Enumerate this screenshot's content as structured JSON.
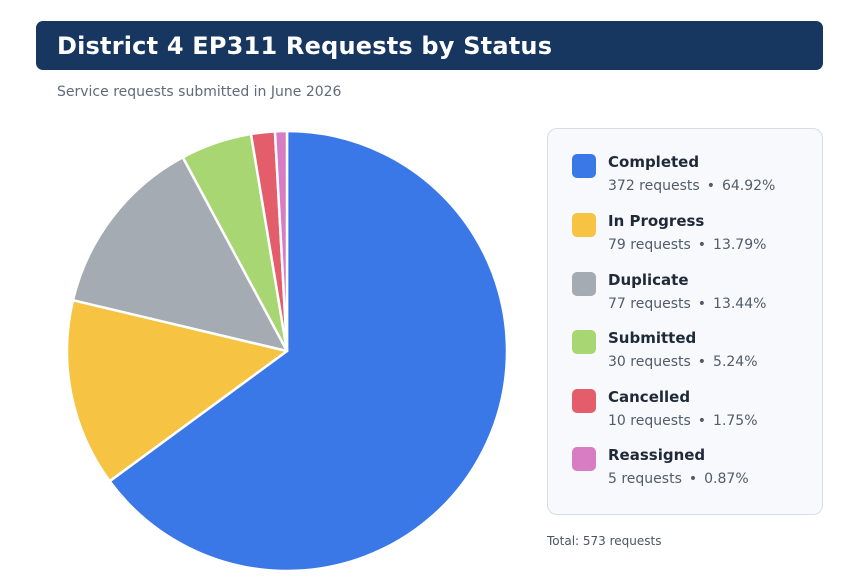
{
  "header": {
    "title": "District 4 EP311 Requests by Status",
    "subtitle": "Service requests submitted in June 2026"
  },
  "chart_data": {
    "type": "pie",
    "title": "District 4 EP311 Requests by Status",
    "subtitle": "Service requests submitted in June 2026",
    "categories": [
      "Completed",
      "In Progress",
      "Duplicate",
      "Submitted",
      "Cancelled",
      "Reassigned"
    ],
    "values": [
      372,
      79,
      77,
      30,
      10,
      5
    ],
    "percents": [
      "64.92%",
      "13.79%",
      "13.44%",
      "5.24%",
      "1.75%",
      "0.87%"
    ],
    "colors": [
      "#3b78e7",
      "#f6c342",
      "#a5abb3",
      "#a8d672",
      "#e35d6a",
      "#d87cc4"
    ],
    "legend": "right"
  },
  "legend": {
    "items": [
      {
        "name": "Completed",
        "count": "372 requests",
        "percent": "64.92%",
        "color": "#3b78e7"
      },
      {
        "name": "In Progress",
        "count": "79 requests",
        "percent": "13.79%",
        "color": "#f6c342"
      },
      {
        "name": "Duplicate",
        "count": "77 requests",
        "percent": "13.44%",
        "color": "#a5abb3"
      },
      {
        "name": "Submitted",
        "count": "30 requests",
        "percent": "5.24%",
        "color": "#a8d672"
      },
      {
        "name": "Cancelled",
        "count": "10 requests",
        "percent": "1.75%",
        "color": "#e35d6a"
      },
      {
        "name": "Reassigned",
        "count": "5 requests",
        "percent": "0.87%",
        "color": "#d87cc4"
      }
    ],
    "separator": "•"
  },
  "footer": {
    "total": "Total: 573 requests"
  }
}
